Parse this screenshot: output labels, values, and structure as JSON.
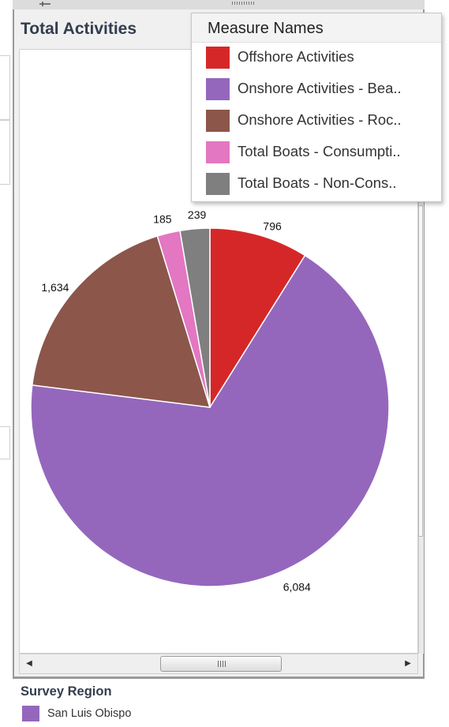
{
  "worksheet": {
    "title": "Total Activities"
  },
  "legend": {
    "title": "Measure Names",
    "items": [
      {
        "label": "Offshore Activities",
        "color": "#d62728"
      },
      {
        "label": "Onshore Activities - Bea..",
        "color": "#9467bd"
      },
      {
        "label": "Onshore Activities - Roc..",
        "color": "#8c564b"
      },
      {
        "label": "Total Boats - Consumpti..",
        "color": "#e377c2"
      },
      {
        "label": "Total Boats - Non-Cons..",
        "color": "#7f7f7f"
      }
    ]
  },
  "chart_data": {
    "type": "pie",
    "title": "Total Activities",
    "slices": [
      {
        "label": "Offshore Activities",
        "value": 796,
        "display": "796",
        "color": "#d62728"
      },
      {
        "label": "Onshore Activities - Bea..",
        "value": 6084,
        "display": "6,084",
        "color": "#9467bd"
      },
      {
        "label": "Onshore Activities - Roc..",
        "value": 1634,
        "display": "1,634",
        "color": "#8c564b"
      },
      {
        "label": "Total Boats - Consumpti..",
        "value": 185,
        "display": "185",
        "color": "#e377c2"
      },
      {
        "label": "Total Boats - Non-Cons..",
        "value": 239,
        "display": "239",
        "color": "#7f7f7f"
      }
    ],
    "start": "top",
    "direction": "clockwise",
    "legend_placement": "top-right"
  },
  "region_legend": {
    "title": "Survey Region",
    "items": [
      {
        "label": "San Luis Obispo",
        "color": "#9467bd"
      }
    ]
  },
  "scrollbar": {
    "grip": "III"
  },
  "icons": {
    "pin": "pin-icon",
    "grip": "grip-icon",
    "scroll_left": "arrow-left-icon",
    "scroll_right": "arrow-right-icon"
  }
}
